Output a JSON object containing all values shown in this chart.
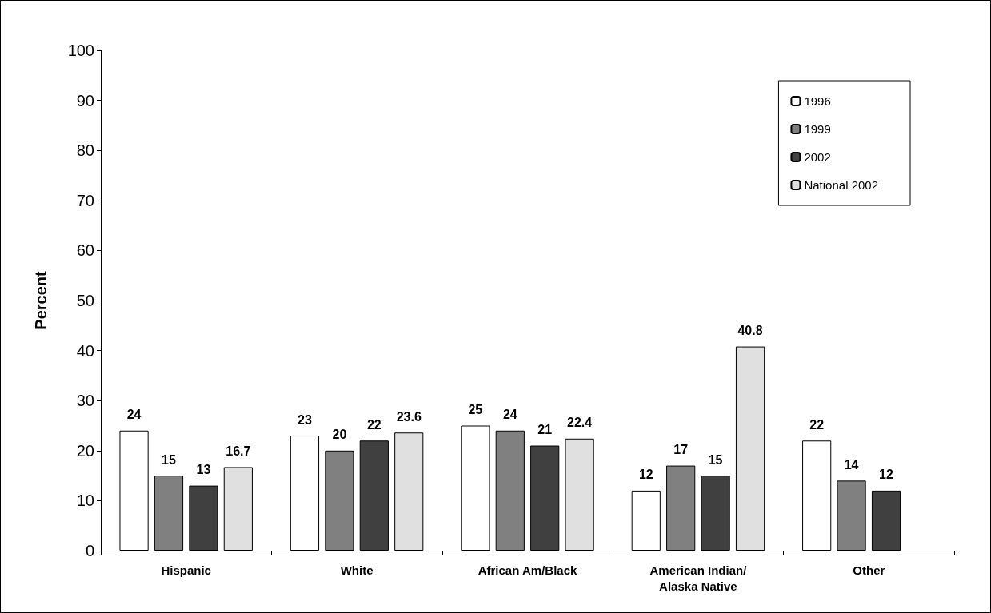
{
  "chart_data": {
    "type": "bar",
    "ylabel": "Percent",
    "categories": [
      "Hispanic",
      "White",
      "African Am/Black",
      "American Indian/Alaska Native",
      "Other"
    ],
    "series": [
      {
        "name": "1996",
        "color": "#ffffff",
        "values": [
          24,
          23,
          25,
          12,
          22
        ]
      },
      {
        "name": "1999",
        "color": "#808080",
        "values": [
          15,
          20,
          24,
          17,
          14
        ]
      },
      {
        "name": "2002",
        "color": "#404040",
        "values": [
          13,
          22,
          21,
          15,
          12
        ]
      },
      {
        "name": "National 2002",
        "color": "#e0e0e0",
        "values": [
          16.7,
          23.6,
          22.4,
          40.8,
          null
        ]
      }
    ],
    "ylim": [
      0,
      100
    ],
    "yticks": [
      0,
      10,
      20,
      30,
      40,
      50,
      60,
      70,
      80,
      90,
      100
    ],
    "grid": false,
    "legend": "top right",
    "data_labels": true
  }
}
